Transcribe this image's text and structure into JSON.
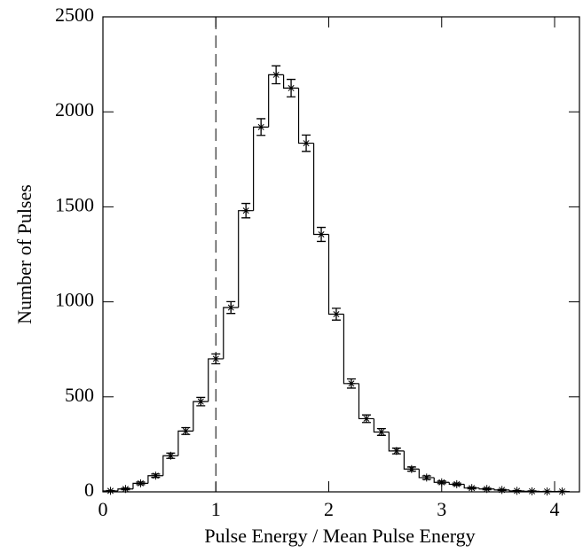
{
  "chart_data": {
    "type": "histogram",
    "xlabel": "Pulse Energy / Mean Pulse Energy",
    "ylabel": "Number of Pulses",
    "bins": [
      0,
      0.133,
      0.267,
      0.4,
      0.533,
      0.667,
      0.8,
      0.933,
      1.067,
      1.2,
      1.333,
      1.467,
      1.6,
      1.733,
      1.867,
      2.0,
      2.133,
      2.267,
      2.4,
      2.533,
      2.667,
      2.8,
      2.933,
      3.067,
      3.2,
      3.333,
      3.467,
      3.6,
      3.733,
      3.867,
      4.0,
      4.133
    ],
    "values": [
      5,
      15,
      45,
      85,
      190,
      320,
      475,
      700,
      970,
      1480,
      1920,
      2195,
      2125,
      1835,
      1355,
      935,
      570,
      385,
      315,
      215,
      120,
      75,
      50,
      40,
      20,
      15,
      10,
      5,
      3,
      2,
      2
    ],
    "errors": [
      2,
      4,
      7,
      9,
      14,
      18,
      22,
      26,
      31,
      38,
      44,
      47,
      46,
      43,
      37,
      31,
      24,
      20,
      18,
      15,
      11,
      9,
      7,
      6,
      4,
      4,
      3,
      2,
      2,
      1,
      1
    ],
    "color": "#000000",
    "vline": 1,
    "xlim": [
      0,
      4.22
    ],
    "ylim": [
      0,
      2500
    ],
    "xticks": [
      0,
      1,
      2,
      3,
      4
    ],
    "yticks": [
      0,
      500,
      1000,
      1500,
      2000,
      2500
    ]
  }
}
